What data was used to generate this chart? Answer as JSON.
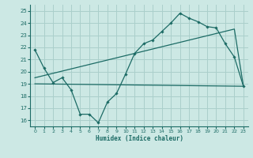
{
  "xlabel": "Humidex (Indice chaleur)",
  "xlim": [
    -0.5,
    23.5
  ],
  "ylim": [
    15.5,
    25.5
  ],
  "xticks": [
    0,
    1,
    2,
    3,
    4,
    5,
    6,
    7,
    8,
    9,
    10,
    11,
    12,
    13,
    14,
    15,
    16,
    17,
    18,
    19,
    20,
    21,
    22,
    23
  ],
  "yticks": [
    16,
    17,
    18,
    19,
    20,
    21,
    22,
    23,
    24,
    25
  ],
  "bg_color": "#cce8e4",
  "grid_color": "#aacfcb",
  "line_color": "#1c6b65",
  "line1_x": [
    0,
    1,
    2,
    3,
    4,
    5,
    6,
    7,
    8,
    9,
    10,
    11,
    12,
    13,
    14,
    15,
    16,
    17,
    18,
    19,
    20,
    21,
    22,
    23
  ],
  "line1_y": [
    21.8,
    20.3,
    19.1,
    19.5,
    18.5,
    16.5,
    16.5,
    15.8,
    17.5,
    18.2,
    19.8,
    21.5,
    22.3,
    22.6,
    23.3,
    24.0,
    24.8,
    24.4,
    24.1,
    23.7,
    23.6,
    22.3,
    21.2,
    18.8
  ],
  "line2_x": [
    0,
    23
  ],
  "line2_y": [
    19.0,
    18.8
  ],
  "line3_x": [
    0,
    22,
    23
  ],
  "line3_y": [
    19.5,
    23.5,
    18.8
  ]
}
